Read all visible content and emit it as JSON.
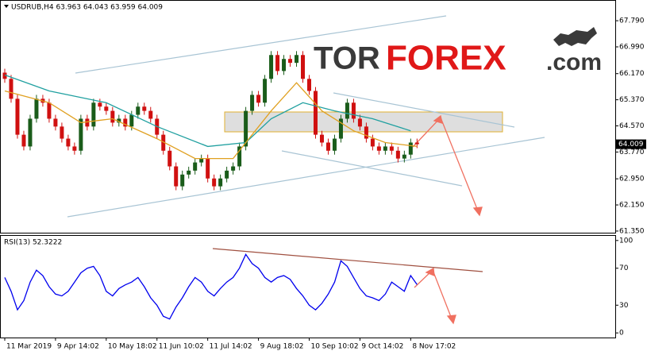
{
  "header": {
    "text": "USDRUB,H4  63.963 64.043 63.959 64.009"
  },
  "logo": {
    "part1": "TOR",
    "part2": "FOREX",
    "part3": ".com"
  },
  "chart_data": [
    {
      "type": "candlestick",
      "up_color": "#1a5c1a",
      "down_color": "#d01010",
      "xlim": [
        -0.625,
        96.25
      ],
      "ylim": [
        61.3,
        68.4
      ],
      "yticks": [
        {
          "value": 67.79,
          "label": "67.790"
        },
        {
          "value": 66.99,
          "label": "66.990"
        },
        {
          "value": 66.17,
          "label": "66.170"
        },
        {
          "value": 65.37,
          "label": "65.370"
        },
        {
          "value": 64.57,
          "label": "64.570"
        },
        {
          "value": 63.77,
          "label": "63.770"
        },
        {
          "value": 62.95,
          "label": "62.950"
        },
        {
          "value": 62.15,
          "label": "62.150"
        },
        {
          "value": 61.35,
          "label": "61.350"
        }
      ],
      "last_price": 64.009,
      "open": [
        66.2,
        66.01,
        65.4,
        64.3,
        63.94,
        64.79,
        65.4,
        65.28,
        64.79,
        64.55,
        64.18,
        63.94,
        63.81,
        64.79,
        64.55,
        65.28,
        65.16,
        65.03,
        64.67,
        64.79,
        64.55,
        64.91,
        65.16,
        65.03,
        64.79,
        64.3,
        63.81,
        63.33,
        62.72,
        63.08,
        63.2,
        63.45,
        63.57,
        62.96,
        62.72,
        62.96,
        63.2,
        63.33,
        63.94,
        65.03,
        65.52,
        65.28,
        66.01,
        66.74,
        66.25,
        66.62,
        66.5,
        66.74,
        66.01,
        65.64,
        64.3,
        64.06,
        63.81,
        64.18,
        64.79,
        65.28,
        64.79,
        64.55,
        64.18,
        63.94,
        63.81,
        63.94,
        63.81,
        63.57,
        63.69,
        64.06
      ],
      "high": [
        66.32,
        66.13,
        65.52,
        64.42,
        64.91,
        65.52,
        65.52,
        65.4,
        64.91,
        64.67,
        64.3,
        64.06,
        64.91,
        64.91,
        65.4,
        65.4,
        65.28,
        65.15,
        64.91,
        64.91,
        65.03,
        65.28,
        65.28,
        65.15,
        64.91,
        64.42,
        63.93,
        63.45,
        63.2,
        63.32,
        63.57,
        63.69,
        63.69,
        63.08,
        63.08,
        63.32,
        63.45,
        64.06,
        65.15,
        65.64,
        65.64,
        66.13,
        66.86,
        66.86,
        66.74,
        66.74,
        66.86,
        66.86,
        66.13,
        65.76,
        64.42,
        64.18,
        64.3,
        64.91,
        65.4,
        65.4,
        64.91,
        64.67,
        64.3,
        64.06,
        64.06,
        64.06,
        63.93,
        63.81,
        64.18,
        64.18
      ],
      "low": [
        65.89,
        65.28,
        64.18,
        63.82,
        63.82,
        64.67,
        65.16,
        64.67,
        64.43,
        64.06,
        63.82,
        63.69,
        63.69,
        64.43,
        64.43,
        65.04,
        64.91,
        64.55,
        64.55,
        64.43,
        64.43,
        64.79,
        64.91,
        64.67,
        64.18,
        63.69,
        63.21,
        62.6,
        62.6,
        62.96,
        63.08,
        63.33,
        62.84,
        62.6,
        62.6,
        62.84,
        63.08,
        63.21,
        63.82,
        64.91,
        65.16,
        65.16,
        65.89,
        66.13,
        66.13,
        66.38,
        66.38,
        65.89,
        65.52,
        64.18,
        63.94,
        63.69,
        63.69,
        64.06,
        64.67,
        64.67,
        64.43,
        64.06,
        63.82,
        63.69,
        63.69,
        63.69,
        63.45,
        63.45,
        63.57,
        63.89
      ],
      "close": [
        66.01,
        65.4,
        64.3,
        63.94,
        64.79,
        65.4,
        65.28,
        64.79,
        64.55,
        64.18,
        63.94,
        63.81,
        64.79,
        64.55,
        65.28,
        65.16,
        65.03,
        64.67,
        64.79,
        64.55,
        64.91,
        65.16,
        65.03,
        64.79,
        64.3,
        63.81,
        63.33,
        62.72,
        63.08,
        63.2,
        63.45,
        63.57,
        62.96,
        62.72,
        62.96,
        63.2,
        63.33,
        63.94,
        65.03,
        65.52,
        65.28,
        66.01,
        66.74,
        66.25,
        66.62,
        66.5,
        66.74,
        66.01,
        65.64,
        64.3,
        64.06,
        63.81,
        64.18,
        64.79,
        65.28,
        64.79,
        64.55,
        64.18,
        63.94,
        63.81,
        63.94,
        63.81,
        63.57,
        63.69,
        64.06,
        64.01
      ],
      "series": [
        {
          "color": "#20a0a0",
          "x": [
            0,
            7,
            16,
            24,
            32,
            38,
            42,
            47,
            52,
            58,
            64
          ],
          "values": [
            66.13,
            65.64,
            65.28,
            64.55,
            63.94,
            64.06,
            64.79,
            65.28,
            65.03,
            64.79,
            64.42
          ]
        },
        {
          "color": "#e0a020",
          "x": [
            0,
            7,
            12,
            17,
            24,
            30,
            36,
            42,
            46,
            50,
            55,
            60,
            65
          ],
          "values": [
            65.64,
            65.28,
            64.67,
            64.79,
            64.18,
            63.57,
            63.57,
            65.03,
            65.89,
            65.03,
            64.42,
            64.06,
            63.94
          ]
        }
      ]
    },
    {
      "type": "line",
      "title": "RSI(13) 52.3222",
      "xlim": [
        -0.625,
        96.25
      ],
      "ylim": [
        -5,
        105
      ],
      "yticks": [
        100,
        70,
        30,
        0
      ],
      "xticks": [
        {
          "value": 0,
          "label": "11 Mar 2019"
        },
        {
          "value": 8,
          "label": "9 Apr 14:02"
        },
        {
          "value": 16,
          "label": "10 May 18:02"
        },
        {
          "value": 24,
          "label": "11 Jun 10:02"
        },
        {
          "value": 32,
          "label": "11 Jul 14:02"
        },
        {
          "value": 40,
          "label": "9 Aug 18:02"
        },
        {
          "value": 48,
          "label": "10 Sep 10:02"
        },
        {
          "value": 56,
          "label": "9 Oct 14:02"
        },
        {
          "value": 64,
          "label": "8 Nov 17:02"
        }
      ],
      "series": [
        {
          "color": "#0000ee",
          "values": [
            60,
            45,
            25,
            35,
            55,
            68,
            62,
            50,
            42,
            40,
            45,
            55,
            65,
            70,
            72,
            62,
            45,
            40,
            48,
            52,
            55,
            60,
            50,
            38,
            30,
            18,
            15,
            28,
            38,
            50,
            60,
            55,
            45,
            40,
            48,
            55,
            60,
            70,
            85,
            75,
            70,
            60,
            55,
            60,
            62,
            58,
            48,
            40,
            30,
            25,
            32,
            42,
            55,
            78,
            72,
            60,
            48,
            40,
            38,
            35,
            42,
            55,
            50,
            45,
            62,
            52.3
          ]
        }
      ]
    }
  ]
}
